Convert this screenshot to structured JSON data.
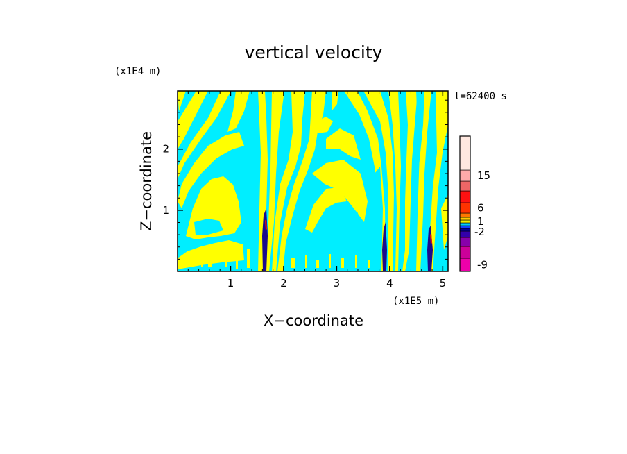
{
  "chart_data": {
    "type": "heatmap",
    "title": "vertical velocity",
    "xlabel": "X−coordinate",
    "ylabel": "Z−coordinate",
    "x_scale_label": "(x1E5 m)",
    "y_scale_label": "(x1E4 m)",
    "time_label": "t=62400 s",
    "xlim": [
      0,
      5.1
    ],
    "ylim": [
      0,
      2.95
    ],
    "x_ticks": [
      1,
      2,
      3,
      4,
      5
    ],
    "x_tick_labels": [
      "1",
      "2",
      "3",
      "4",
      "5"
    ],
    "y_ticks": [
      1,
      2
    ],
    "y_tick_labels": [
      "1",
      "2"
    ],
    "colors": {
      "positive": "#ffff00",
      "negative": "#00eeff",
      "strong_negative": "#1a0a8c",
      "strong_positive": "#e81010",
      "frame": "#000000"
    },
    "colorbar": {
      "levels": [
        {
          "color": "#ee00aa",
          "label": "-9"
        },
        {
          "color": "#cc0099"
        },
        {
          "color": "#8800aa"
        },
        {
          "color": "#3300aa"
        },
        {
          "color": "#000099"
        },
        {
          "color": "#1144ff"
        },
        {
          "color": "#00ccff"
        },
        {
          "color": "#eeee00",
          "label": "1"
        },
        {
          "color": "#ffcc00"
        },
        {
          "color": "#ff7700"
        },
        {
          "color": "#ff3300",
          "label": "6"
        },
        {
          "color": "#ff1111"
        },
        {
          "color": "#ee6666"
        },
        {
          "color": "#ffaaaa",
          "label": "15"
        },
        {
          "color": "#ffe8e0"
        }
      ],
      "extra_labels": [
        "-2"
      ]
    }
  }
}
